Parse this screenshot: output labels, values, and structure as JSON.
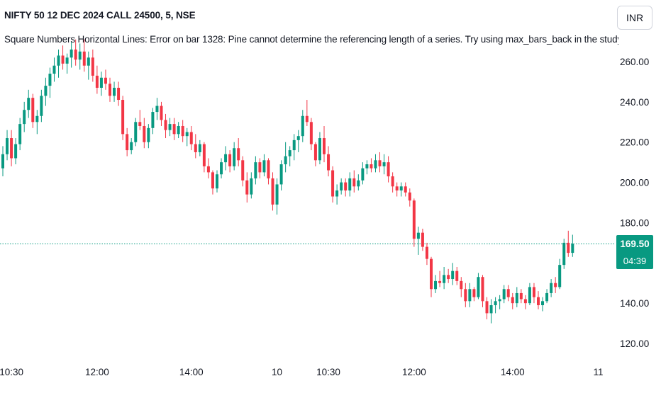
{
  "chart_data": {
    "type": "candlestick",
    "title": "NIFTY 50 12 DEC 2024 CALL 24500, 5, NSE",
    "error_message": "Square Numbers Horizontal Lines: Error on bar 1328: Pine cannot determine the referencing length of a series. Try using max_bars_back in the study",
    "currency": "INR",
    "last_price": "169.50",
    "last_price_value": 169.5,
    "countdown": "04:39",
    "y_ticks": [
      "260.00",
      "240.00",
      "220.00",
      "200.00",
      "180.00",
      "140.00",
      "120.00"
    ],
    "y_tick_values": [
      260,
      240,
      220,
      200,
      180,
      140,
      120
    ],
    "x_ticks": [
      "10:30",
      "12:00",
      "14:00",
      "10",
      "10:30",
      "12:00",
      "14:00",
      "11"
    ],
    "x_tick_bars": [
      2,
      22,
      44,
      64,
      76,
      96,
      119,
      139
    ],
    "ylim": [
      115,
      275
    ],
    "x_per_bar": 6.04,
    "colors": {
      "up": "#089981",
      "down": "#f23645",
      "last_price_line": "#089981",
      "text": "#131722"
    },
    "candles": [
      {
        "o": 207,
        "h": 218,
        "l": 203,
        "c": 214
      },
      {
        "o": 214,
        "h": 226,
        "l": 211,
        "c": 222
      },
      {
        "o": 222,
        "h": 226,
        "l": 208,
        "c": 212
      },
      {
        "o": 212,
        "h": 222,
        "l": 209,
        "c": 219
      },
      {
        "o": 219,
        "h": 232,
        "l": 216,
        "c": 229
      },
      {
        "o": 229,
        "h": 240,
        "l": 225,
        "c": 236
      },
      {
        "o": 236,
        "h": 246,
        "l": 232,
        "c": 242
      },
      {
        "o": 242,
        "h": 244,
        "l": 227,
        "c": 230
      },
      {
        "o": 230,
        "h": 236,
        "l": 224,
        "c": 233
      },
      {
        "o": 233,
        "h": 246,
        "l": 230,
        "c": 243
      },
      {
        "o": 243,
        "h": 252,
        "l": 238,
        "c": 248
      },
      {
        "o": 248,
        "h": 257,
        "l": 242,
        "c": 254
      },
      {
        "o": 254,
        "h": 262,
        "l": 250,
        "c": 258
      },
      {
        "o": 258,
        "h": 266,
        "l": 252,
        "c": 263
      },
      {
        "o": 263,
        "h": 268,
        "l": 256,
        "c": 259
      },
      {
        "o": 259,
        "h": 264,
        "l": 254,
        "c": 262
      },
      {
        "o": 262,
        "h": 270,
        "l": 257,
        "c": 266
      },
      {
        "o": 266,
        "h": 271,
        "l": 258,
        "c": 261
      },
      {
        "o": 261,
        "h": 269,
        "l": 256,
        "c": 265
      },
      {
        "o": 265,
        "h": 271,
        "l": 255,
        "c": 258
      },
      {
        "o": 258,
        "h": 265,
        "l": 251,
        "c": 262
      },
      {
        "o": 262,
        "h": 266,
        "l": 250,
        "c": 253
      },
      {
        "o": 253,
        "h": 258,
        "l": 244,
        "c": 247
      },
      {
        "o": 247,
        "h": 255,
        "l": 243,
        "c": 252
      },
      {
        "o": 252,
        "h": 256,
        "l": 246,
        "c": 249
      },
      {
        "o": 249,
        "h": 252,
        "l": 240,
        "c": 243
      },
      {
        "o": 243,
        "h": 250,
        "l": 240,
        "c": 247
      },
      {
        "o": 247,
        "h": 250,
        "l": 238,
        "c": 241
      },
      {
        "o": 241,
        "h": 243,
        "l": 221,
        "c": 224
      },
      {
        "o": 224,
        "h": 227,
        "l": 213,
        "c": 216
      },
      {
        "o": 216,
        "h": 222,
        "l": 214,
        "c": 220
      },
      {
        "o": 220,
        "h": 232,
        "l": 218,
        "c": 230
      },
      {
        "o": 230,
        "h": 236,
        "l": 226,
        "c": 228
      },
      {
        "o": 228,
        "h": 232,
        "l": 217,
        "c": 220
      },
      {
        "o": 220,
        "h": 229,
        "l": 217,
        "c": 227
      },
      {
        "o": 227,
        "h": 237,
        "l": 224,
        "c": 235
      },
      {
        "o": 235,
        "h": 242,
        "l": 231,
        "c": 238
      },
      {
        "o": 238,
        "h": 240,
        "l": 228,
        "c": 231
      },
      {
        "o": 231,
        "h": 234,
        "l": 222,
        "c": 226
      },
      {
        "o": 226,
        "h": 232,
        "l": 223,
        "c": 229
      },
      {
        "o": 229,
        "h": 232,
        "l": 221,
        "c": 224
      },
      {
        "o": 224,
        "h": 230,
        "l": 222,
        "c": 228
      },
      {
        "o": 228,
        "h": 231,
        "l": 220,
        "c": 223
      },
      {
        "o": 223,
        "h": 227,
        "l": 218,
        "c": 225
      },
      {
        "o": 225,
        "h": 228,
        "l": 216,
        "c": 219
      },
      {
        "o": 219,
        "h": 224,
        "l": 212,
        "c": 215
      },
      {
        "o": 215,
        "h": 221,
        "l": 213,
        "c": 219
      },
      {
        "o": 219,
        "h": 220,
        "l": 205,
        "c": 208
      },
      {
        "o": 208,
        "h": 212,
        "l": 202,
        "c": 205
      },
      {
        "o": 205,
        "h": 206,
        "l": 194,
        "c": 197
      },
      {
        "o": 197,
        "h": 206,
        "l": 195,
        "c": 204
      },
      {
        "o": 204,
        "h": 212,
        "l": 202,
        "c": 210
      },
      {
        "o": 210,
        "h": 218,
        "l": 206,
        "c": 214
      },
      {
        "o": 214,
        "h": 216,
        "l": 205,
        "c": 208
      },
      {
        "o": 208,
        "h": 220,
        "l": 206,
        "c": 217
      },
      {
        "o": 217,
        "h": 222,
        "l": 208,
        "c": 211
      },
      {
        "o": 211,
        "h": 213,
        "l": 198,
        "c": 201
      },
      {
        "o": 201,
        "h": 205,
        "l": 190,
        "c": 194
      },
      {
        "o": 194,
        "h": 205,
        "l": 192,
        "c": 202
      },
      {
        "o": 202,
        "h": 213,
        "l": 199,
        "c": 210
      },
      {
        "o": 210,
        "h": 212,
        "l": 202,
        "c": 205
      },
      {
        "o": 205,
        "h": 214,
        "l": 203,
        "c": 211
      },
      {
        "o": 211,
        "h": 212,
        "l": 199,
        "c": 202
      },
      {
        "o": 202,
        "h": 205,
        "l": 186,
        "c": 189
      },
      {
        "o": 189,
        "h": 202,
        "l": 184,
        "c": 199
      },
      {
        "o": 199,
        "h": 211,
        "l": 196,
        "c": 209
      },
      {
        "o": 209,
        "h": 220,
        "l": 205,
        "c": 213
      },
      {
        "o": 213,
        "h": 218,
        "l": 208,
        "c": 216
      },
      {
        "o": 216,
        "h": 224,
        "l": 211,
        "c": 221
      },
      {
        "o": 221,
        "h": 226,
        "l": 215,
        "c": 223
      },
      {
        "o": 223,
        "h": 236,
        "l": 220,
        "c": 233
      },
      {
        "o": 233,
        "h": 241,
        "l": 228,
        "c": 230
      },
      {
        "o": 230,
        "h": 232,
        "l": 216,
        "c": 219
      },
      {
        "o": 219,
        "h": 220,
        "l": 208,
        "c": 211
      },
      {
        "o": 211,
        "h": 225,
        "l": 209,
        "c": 222
      },
      {
        "o": 222,
        "h": 228,
        "l": 210,
        "c": 214
      },
      {
        "o": 214,
        "h": 218,
        "l": 203,
        "c": 206
      },
      {
        "o": 206,
        "h": 208,
        "l": 190,
        "c": 193
      },
      {
        "o": 193,
        "h": 199,
        "l": 189,
        "c": 196
      },
      {
        "o": 196,
        "h": 202,
        "l": 194,
        "c": 200
      },
      {
        "o": 200,
        "h": 202,
        "l": 193,
        "c": 196
      },
      {
        "o": 196,
        "h": 205,
        "l": 193,
        "c": 202
      },
      {
        "o": 202,
        "h": 206,
        "l": 195,
        "c": 198
      },
      {
        "o": 198,
        "h": 204,
        "l": 196,
        "c": 201
      },
      {
        "o": 201,
        "h": 210,
        "l": 199,
        "c": 207
      },
      {
        "o": 207,
        "h": 211,
        "l": 204,
        "c": 209
      },
      {
        "o": 209,
        "h": 212,
        "l": 205,
        "c": 207
      },
      {
        "o": 207,
        "h": 214,
        "l": 205,
        "c": 211
      },
      {
        "o": 211,
        "h": 215,
        "l": 205,
        "c": 208
      },
      {
        "o": 208,
        "h": 214,
        "l": 204,
        "c": 210
      },
      {
        "o": 210,
        "h": 213,
        "l": 200,
        "c": 203
      },
      {
        "o": 203,
        "h": 205,
        "l": 195,
        "c": 198
      },
      {
        "o": 198,
        "h": 200,
        "l": 193,
        "c": 196
      },
      {
        "o": 196,
        "h": 200,
        "l": 193,
        "c": 198
      },
      {
        "o": 198,
        "h": 200,
        "l": 193,
        "c": 195
      },
      {
        "o": 195,
        "h": 197,
        "l": 188,
        "c": 191
      },
      {
        "o": 191,
        "h": 192,
        "l": 168,
        "c": 172
      },
      {
        "o": 172,
        "h": 178,
        "l": 164,
        "c": 175
      },
      {
        "o": 175,
        "h": 177,
        "l": 166,
        "c": 168
      },
      {
        "o": 168,
        "h": 170,
        "l": 159,
        "c": 162
      },
      {
        "o": 162,
        "h": 163,
        "l": 143,
        "c": 147
      },
      {
        "o": 147,
        "h": 154,
        "l": 145,
        "c": 151
      },
      {
        "o": 151,
        "h": 156,
        "l": 148,
        "c": 150
      },
      {
        "o": 150,
        "h": 158,
        "l": 147,
        "c": 154
      },
      {
        "o": 154,
        "h": 157,
        "l": 150,
        "c": 152
      },
      {
        "o": 152,
        "h": 160,
        "l": 149,
        "c": 156
      },
      {
        "o": 156,
        "h": 158,
        "l": 149,
        "c": 151
      },
      {
        "o": 151,
        "h": 153,
        "l": 143,
        "c": 147
      },
      {
        "o": 147,
        "h": 150,
        "l": 138,
        "c": 141
      },
      {
        "o": 141,
        "h": 150,
        "l": 138,
        "c": 147
      },
      {
        "o": 147,
        "h": 148,
        "l": 141,
        "c": 143
      },
      {
        "o": 143,
        "h": 155,
        "l": 142,
        "c": 153
      },
      {
        "o": 153,
        "h": 154,
        "l": 138,
        "c": 141
      },
      {
        "o": 141,
        "h": 143,
        "l": 132,
        "c": 135
      },
      {
        "o": 135,
        "h": 142,
        "l": 130,
        "c": 139
      },
      {
        "o": 139,
        "h": 143,
        "l": 135,
        "c": 141
      },
      {
        "o": 141,
        "h": 144,
        "l": 137,
        "c": 142
      },
      {
        "o": 142,
        "h": 149,
        "l": 140,
        "c": 147
      },
      {
        "o": 147,
        "h": 149,
        "l": 141,
        "c": 143
      },
      {
        "o": 143,
        "h": 145,
        "l": 137,
        "c": 140
      },
      {
        "o": 140,
        "h": 148,
        "l": 138,
        "c": 145
      },
      {
        "o": 145,
        "h": 147,
        "l": 140,
        "c": 142
      },
      {
        "o": 142,
        "h": 144,
        "l": 137,
        "c": 140
      },
      {
        "o": 140,
        "h": 150,
        "l": 139,
        "c": 148
      },
      {
        "o": 148,
        "h": 150,
        "l": 140,
        "c": 143
      },
      {
        "o": 143,
        "h": 146,
        "l": 137,
        "c": 139
      },
      {
        "o": 139,
        "h": 143,
        "l": 136,
        "c": 141
      },
      {
        "o": 141,
        "h": 147,
        "l": 140,
        "c": 145
      },
      {
        "o": 145,
        "h": 152,
        "l": 143,
        "c": 150
      },
      {
        "o": 150,
        "h": 153,
        "l": 145,
        "c": 148
      },
      {
        "o": 148,
        "h": 162,
        "l": 147,
        "c": 159
      },
      {
        "o": 159,
        "h": 172,
        "l": 157,
        "c": 170
      },
      {
        "o": 170,
        "h": 176,
        "l": 163,
        "c": 165
      },
      {
        "o": 165,
        "h": 174,
        "l": 163,
        "c": 169.5
      }
    ]
  }
}
